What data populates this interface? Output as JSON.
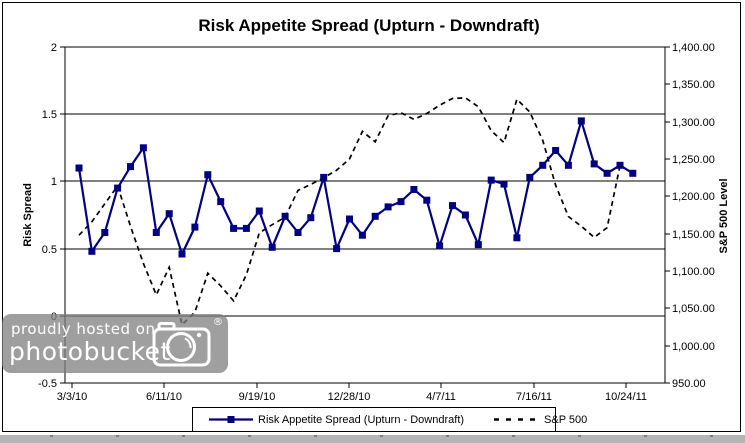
{
  "chart_data": {
    "type": "line",
    "title": "Risk Appetite Spread (Upturn - Downdraft)",
    "x_tick_labels": [
      "3/3/10",
      "6/11/10",
      "9/19/10",
      "12/28/10",
      "4/7/11",
      "7/16/11",
      "10/24/11"
    ],
    "left_axis": {
      "label": "Risk Spread",
      "min": -0.5,
      "max": 2,
      "step": 0.5,
      "tick_labels": [
        "2",
        "1.5",
        "1",
        "0.5",
        "0",
        "-0.5"
      ]
    },
    "right_axis": {
      "label": "S&P 500 Level",
      "min": 950,
      "max": 1400,
      "step": 50,
      "tick_labels": [
        "1,400.00",
        "1,350.00",
        "1,300.00",
        "1,250.00",
        "1,200.00",
        "1,150.00",
        "1,100.00",
        "1,050.00",
        "1,000.00",
        "950.00"
      ]
    },
    "grid": true,
    "legend_position": "bottom",
    "series": [
      {
        "name": "Risk Appetite Spread (Upturn - Downdraft)",
        "axis": "left",
        "color": "#000080",
        "style": "solid",
        "marker": "square",
        "values": [
          1.1,
          0.48,
          0.62,
          0.95,
          1.11,
          1.25,
          0.62,
          0.76,
          0.46,
          0.66,
          1.05,
          0.85,
          0.65,
          0.65,
          0.78,
          0.51,
          0.74,
          0.62,
          0.73,
          1.03,
          0.5,
          0.72,
          0.6,
          0.74,
          0.81,
          0.85,
          0.94,
          0.86,
          0.52,
          0.82,
          0.75,
          0.53,
          1.01,
          0.98,
          0.58,
          1.03,
          1.12,
          1.23,
          1.12,
          1.45,
          1.13,
          1.06,
          1.12,
          1.06
        ]
      },
      {
        "name": "S&P 500",
        "axis": "right",
        "color": "#000000",
        "style": "dashed",
        "marker": "none",
        "values": [
          1148,
          1166,
          1190,
          1214,
          1160,
          1110,
          1068,
          1105,
          1028,
          1045,
          1097,
          1080,
          1060,
          1095,
          1151,
          1162,
          1172,
          1208,
          1216,
          1225,
          1235,
          1250,
          1287,
          1273,
          1308,
          1312,
          1303,
          1311,
          1322,
          1331,
          1332,
          1320,
          1288,
          1272,
          1330,
          1313,
          1275,
          1215,
          1173,
          1160,
          1145,
          1158,
          1241,
          null
        ]
      }
    ]
  },
  "watermark": {
    "line1": "proudly hosted on",
    "line2": "photobucket",
    "registered_mark": "®"
  }
}
